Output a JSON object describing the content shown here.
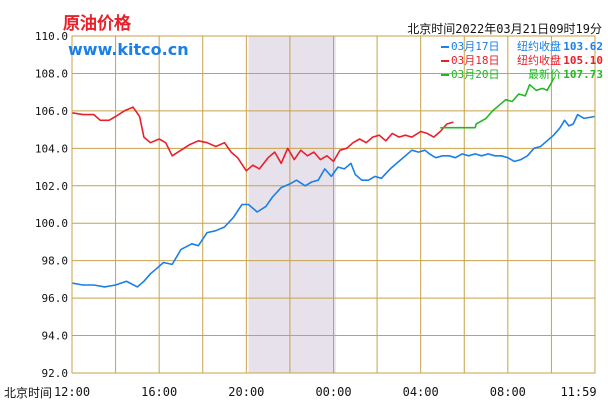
{
  "header": {
    "title": "原油价格",
    "site": "www.kitco.cn",
    "timestamp": "北京时间2022年03月21日09时19分"
  },
  "legend": [
    {
      "date": "03月17日",
      "kind": "纽约收盘",
      "value": "103.62",
      "color": "#1a7fe6"
    },
    {
      "date": "03月18日",
      "kind": "纽约收盘",
      "value": "105.10",
      "color": "#e8202a"
    },
    {
      "date": "03月20日",
      "kind": "最新价",
      "value": "107.73",
      "color": "#22b822"
    }
  ],
  "axis": {
    "x_prefix": "北京时间"
  },
  "chart_data": {
    "type": "line",
    "title": "原油价格",
    "ylim": [
      92.0,
      110.0
    ],
    "y_ticks": [
      "92.0",
      "94.0",
      "96.0",
      "98.0",
      "100.0",
      "102.0",
      "104.0",
      "106.0",
      "108.0",
      "110.0"
    ],
    "x_ticks": [
      {
        "label": "12:00",
        "hour": 0
      },
      {
        "label": "16:00",
        "hour": 4
      },
      {
        "label": "20:00",
        "hour": 8
      },
      {
        "label": "00:00",
        "hour": 12
      },
      {
        "label": "04:00",
        "hour": 16
      },
      {
        "label": "08:00",
        "hour": 20
      },
      {
        "label": "11:59",
        "hour": 23.98
      }
    ],
    "xlim": [
      0,
      24
    ],
    "shaded_hours": [
      8.1,
      12.1
    ],
    "grid": true,
    "colors": {
      "frame": "#c8a24a",
      "grid": "#c8a24a",
      "shade": "#e6e1ea"
    },
    "series": [
      {
        "name": "03月17日",
        "color": "#1a7fe6",
        "points": [
          [
            0.0,
            96.8
          ],
          [
            0.5,
            96.7
          ],
          [
            1.0,
            96.7
          ],
          [
            1.5,
            96.6
          ],
          [
            2.0,
            96.7
          ],
          [
            2.5,
            96.9
          ],
          [
            3.0,
            96.6
          ],
          [
            3.3,
            96.9
          ],
          [
            3.6,
            97.3
          ],
          [
            3.9,
            97.6
          ],
          [
            4.2,
            97.9
          ],
          [
            4.6,
            97.8
          ],
          [
            5.0,
            98.6
          ],
          [
            5.5,
            98.9
          ],
          [
            5.8,
            98.8
          ],
          [
            6.2,
            99.5
          ],
          [
            6.6,
            99.6
          ],
          [
            7.0,
            99.8
          ],
          [
            7.4,
            100.3
          ],
          [
            7.8,
            101.0
          ],
          [
            8.1,
            101.0
          ],
          [
            8.5,
            100.6
          ],
          [
            8.9,
            100.9
          ],
          [
            9.2,
            101.4
          ],
          [
            9.6,
            101.9
          ],
          [
            10.0,
            102.1
          ],
          [
            10.3,
            102.3
          ],
          [
            10.7,
            102.0
          ],
          [
            11.0,
            102.2
          ],
          [
            11.3,
            102.3
          ],
          [
            11.6,
            102.9
          ],
          [
            11.9,
            102.5
          ],
          [
            12.2,
            103.0
          ],
          [
            12.5,
            102.9
          ],
          [
            12.8,
            103.2
          ],
          [
            13.0,
            102.6
          ],
          [
            13.3,
            102.3
          ],
          [
            13.6,
            102.3
          ],
          [
            13.9,
            102.5
          ],
          [
            14.2,
            102.4
          ],
          [
            14.6,
            102.9
          ],
          [
            15.0,
            103.3
          ],
          [
            15.3,
            103.6
          ],
          [
            15.6,
            103.9
          ],
          [
            15.9,
            103.8
          ],
          [
            16.2,
            103.9
          ],
          [
            16.4,
            103.7
          ],
          [
            16.7,
            103.5
          ],
          [
            17.0,
            103.6
          ],
          [
            17.3,
            103.6
          ],
          [
            17.6,
            103.5
          ],
          [
            17.9,
            103.7
          ],
          [
            18.2,
            103.6
          ],
          [
            18.5,
            103.7
          ],
          [
            18.8,
            103.6
          ],
          [
            19.1,
            103.7
          ],
          [
            19.4,
            103.6
          ],
          [
            19.7,
            103.6
          ],
          [
            20.0,
            103.5
          ],
          [
            20.3,
            103.3
          ],
          [
            20.6,
            103.4
          ],
          [
            20.9,
            103.6
          ],
          [
            21.2,
            104.0
          ],
          [
            21.5,
            104.1
          ],
          [
            21.8,
            104.4
          ],
          [
            22.1,
            104.7
          ],
          [
            22.4,
            105.1
          ],
          [
            22.6,
            105.5
          ],
          [
            22.8,
            105.2
          ],
          [
            23.0,
            105.3
          ],
          [
            23.2,
            105.8
          ],
          [
            23.5,
            105.6
          ],
          [
            23.98,
            105.7
          ]
        ]
      },
      {
        "name": "03月18日",
        "color": "#e8202a",
        "points": [
          [
            0.0,
            105.9
          ],
          [
            0.5,
            105.8
          ],
          [
            1.0,
            105.8
          ],
          [
            1.3,
            105.5
          ],
          [
            1.7,
            105.5
          ],
          [
            2.0,
            105.7
          ],
          [
            2.4,
            106.0
          ],
          [
            2.8,
            106.2
          ],
          [
            3.1,
            105.7
          ],
          [
            3.3,
            104.6
          ],
          [
            3.6,
            104.3
          ],
          [
            4.0,
            104.5
          ],
          [
            4.3,
            104.3
          ],
          [
            4.6,
            103.6
          ],
          [
            5.0,
            103.9
          ],
          [
            5.4,
            104.2
          ],
          [
            5.8,
            104.4
          ],
          [
            6.2,
            104.3
          ],
          [
            6.6,
            104.1
          ],
          [
            7.0,
            104.3
          ],
          [
            7.3,
            103.8
          ],
          [
            7.6,
            103.5
          ],
          [
            8.0,
            102.8
          ],
          [
            8.3,
            103.1
          ],
          [
            8.6,
            102.9
          ],
          [
            9.0,
            103.5
          ],
          [
            9.3,
            103.8
          ],
          [
            9.6,
            103.2
          ],
          [
            9.9,
            104.0
          ],
          [
            10.2,
            103.4
          ],
          [
            10.5,
            103.9
          ],
          [
            10.8,
            103.6
          ],
          [
            11.1,
            103.8
          ],
          [
            11.4,
            103.4
          ],
          [
            11.7,
            103.6
          ],
          [
            12.0,
            103.3
          ],
          [
            12.3,
            103.9
          ],
          [
            12.6,
            104.0
          ],
          [
            12.9,
            104.3
          ],
          [
            13.2,
            104.5
          ],
          [
            13.5,
            104.3
          ],
          [
            13.8,
            104.6
          ],
          [
            14.1,
            104.7
          ],
          [
            14.4,
            104.4
          ],
          [
            14.7,
            104.8
          ],
          [
            15.0,
            104.6
          ],
          [
            15.3,
            104.7
          ],
          [
            15.6,
            104.6
          ],
          [
            16.0,
            104.9
          ],
          [
            16.3,
            104.8
          ],
          [
            16.6,
            104.6
          ],
          [
            16.9,
            104.9
          ],
          [
            17.2,
            105.3
          ],
          [
            17.5,
            105.4
          ]
        ]
      },
      {
        "name": "03月20日",
        "color": "#22b822",
        "points": [
          [
            16.9,
            105.1
          ],
          [
            17.5,
            105.1
          ],
          [
            18.0,
            105.1
          ],
          [
            18.5,
            105.1
          ],
          [
            18.55,
            105.3
          ],
          [
            19.0,
            105.6
          ],
          [
            19.3,
            106.0
          ],
          [
            19.6,
            106.3
          ],
          [
            19.9,
            106.6
          ],
          [
            20.2,
            106.5
          ],
          [
            20.5,
            106.9
          ],
          [
            20.8,
            106.8
          ],
          [
            21.0,
            107.4
          ],
          [
            21.3,
            107.1
          ],
          [
            21.6,
            107.2
          ],
          [
            21.8,
            107.1
          ],
          [
            22.0,
            107.5
          ],
          [
            22.1,
            107.73
          ]
        ]
      }
    ]
  }
}
